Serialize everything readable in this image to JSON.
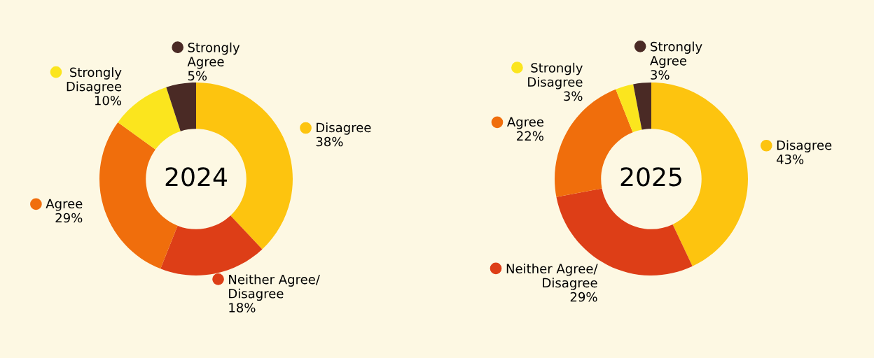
{
  "chart_data": [
    {
      "type": "donut",
      "title": "2024",
      "categories": [
        "Disagree",
        "Neither Agree/\nDisagree",
        "Agree",
        "Strongly\nDisagree",
        "Strongly\nAgree"
      ],
      "values": [
        38,
        18,
        29,
        10,
        5
      ],
      "value_labels": [
        "38%",
        "18%",
        "29%",
        "10%",
        "5%"
      ],
      "colors": [
        "#fdc40f",
        "#dd3e17",
        "#f06e0c",
        "#fbe51e",
        "#4a2a25"
      ],
      "legend": "right"
    },
    {
      "type": "donut",
      "title": "2025",
      "categories": [
        "Disagree",
        "Neither Agree/\nDisagree",
        "Agree",
        "Strongly\nDisagree",
        "Strongly\nAgree"
      ],
      "values": [
        43,
        29,
        22,
        3,
        3
      ],
      "value_labels": [
        "43%",
        "29%",
        "22%",
        "3%",
        "3%"
      ],
      "colors": [
        "#fdc40f",
        "#dd3e17",
        "#f06e0c",
        "#fbe51e",
        "#4a2a25"
      ],
      "legend": "right"
    }
  ]
}
